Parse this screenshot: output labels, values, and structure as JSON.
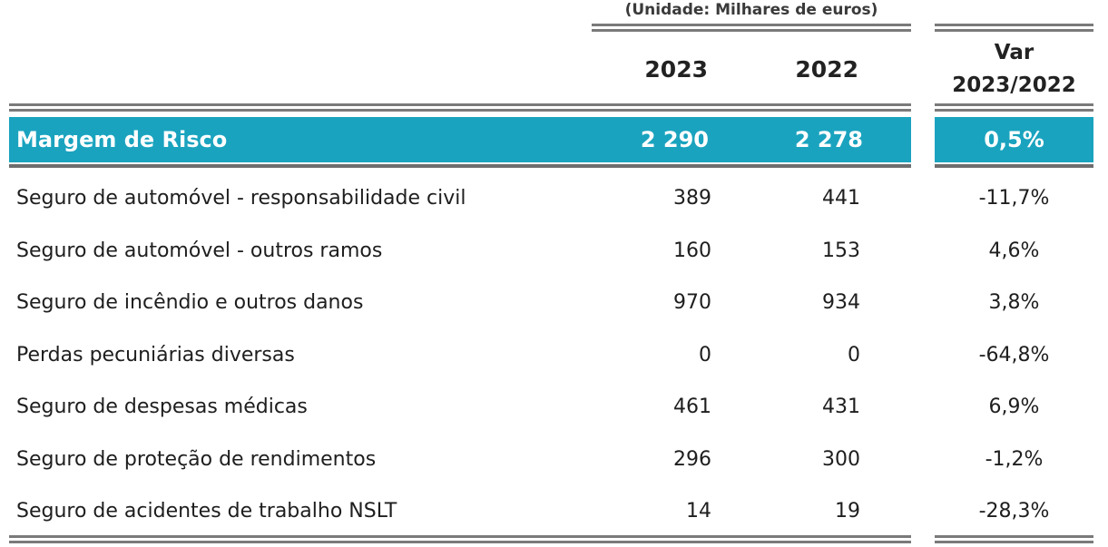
{
  "unit_note": "(Unidade: Milhares de euros)",
  "header": {
    "col1": "2023",
    "col2": "2022",
    "var_line1": "Var",
    "var_line2": "2023/2022"
  },
  "highlight": {
    "label": "Margem de Risco",
    "v2023": "2 290",
    "v2022": "2 278",
    "var": "0,5%"
  },
  "highlight_color": "#1aa3bf",
  "rows": [
    {
      "label": "Seguro de automóvel - responsabilidade civil",
      "v2023": "389",
      "v2022": "441",
      "var": "-11,7%"
    },
    {
      "label": "Seguro de automóvel - outros ramos",
      "v2023": "160",
      "v2022": "153",
      "var": "4,6%"
    },
    {
      "label": "Seguro de incêndio e outros danos",
      "v2023": "970",
      "v2022": "934",
      "var": "3,8%"
    },
    {
      "label": "Perdas pecuniárias diversas",
      "v2023": "0",
      "v2022": "0",
      "var": "-64,8%"
    },
    {
      "label": "Seguro de despesas médicas",
      "v2023": "461",
      "v2022": "431",
      "var": "6,9%"
    },
    {
      "label": "Seguro de proteção de rendimentos",
      "v2023": "296",
      "v2022": "300",
      "var": "-1,2%"
    },
    {
      "label": "Seguro de acidentes de trabalho NSLT",
      "v2023": "14",
      "v2022": "19",
      "var": "-28,3%"
    }
  ]
}
